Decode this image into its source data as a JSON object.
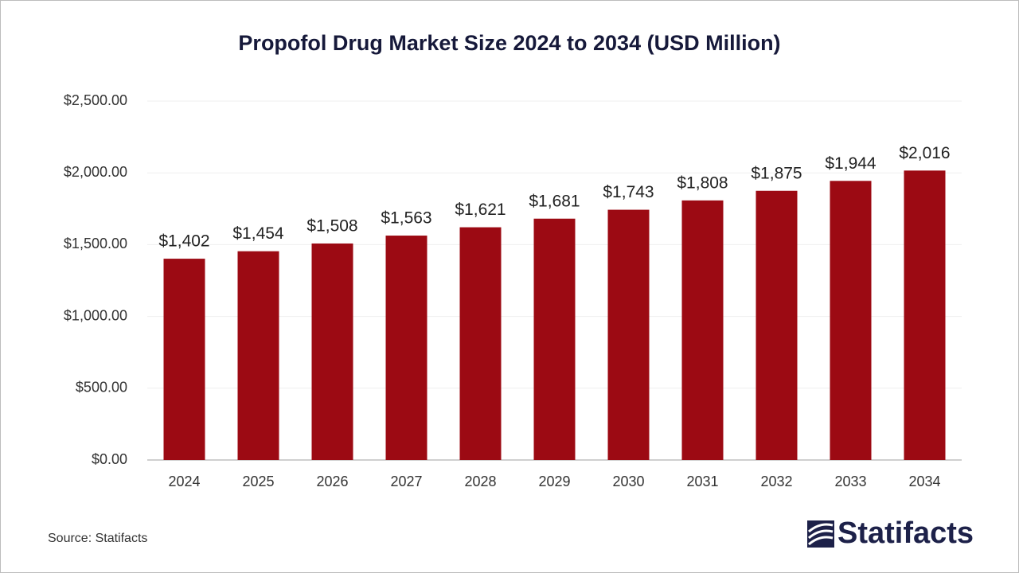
{
  "chart_data": {
    "type": "bar",
    "title": "Propofol Drug Market Size 2024 to 2034 (USD Million)",
    "categories": [
      "2024",
      "2025",
      "2026",
      "2027",
      "2028",
      "2029",
      "2030",
      "2031",
      "2032",
      "2033",
      "2034"
    ],
    "values": [
      1402,
      1454,
      1508,
      1563,
      1621,
      1681,
      1743,
      1808,
      1875,
      1944,
      2016
    ],
    "value_labels": [
      "$1,402",
      "$1,454",
      "$1,508",
      "$1,563",
      "$1,621",
      "$1,681",
      "$1,743",
      "$1,808",
      "$1,875",
      "$1,944",
      "$2,016"
    ],
    "color": "#9c0a13",
    "ylim": [
      0,
      2500
    ],
    "yticks": [
      {
        "value": 0,
        "label": "$0.00"
      },
      {
        "value": 500,
        "label": "$500.00"
      },
      {
        "value": 1000,
        "label": "$1,000.00"
      },
      {
        "value": 1500,
        "label": "$1,500.00"
      },
      {
        "value": 2000,
        "label": "$2,000.00"
      },
      {
        "value": 2500,
        "label": "$2,500.00"
      }
    ],
    "grid": true
  },
  "footer": {
    "source": "Source: Statifacts",
    "brand": "Statifacts"
  }
}
